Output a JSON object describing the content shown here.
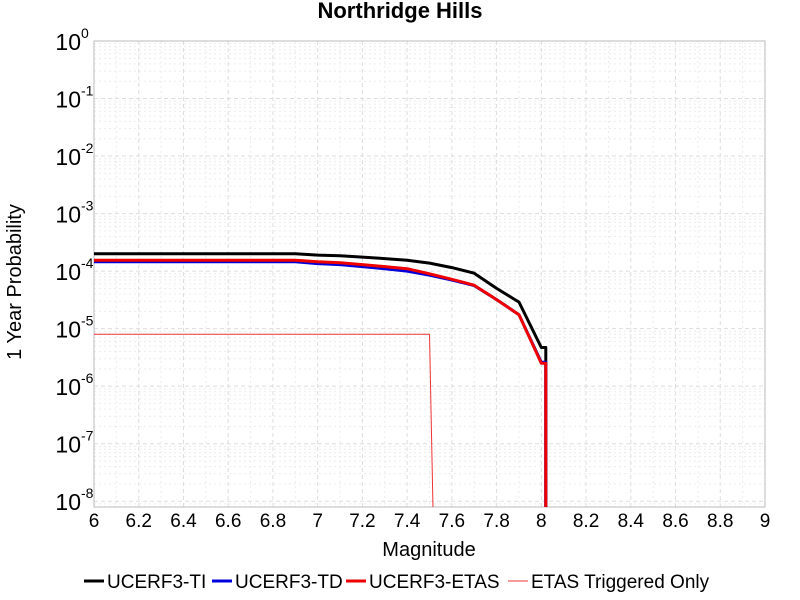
{
  "chart_data": {
    "type": "line",
    "title": "Northridge Hills",
    "xlabel": "Magnitude",
    "ylabel": "1 Year Probability",
    "xlim": [
      6,
      9
    ],
    "ylim_log10": [
      -8.1,
      0
    ],
    "yscale": "log",
    "grid": true,
    "legend_placement": "bottom",
    "x_ticks": [
      "6",
      "6.2",
      "6.4",
      "6.6",
      "6.8",
      "7",
      "7.2",
      "7.4",
      "7.6",
      "7.8",
      "8",
      "8.2",
      "8.4",
      "8.6",
      "8.8",
      "9"
    ],
    "y_ticks": [
      {
        "base": "10",
        "exp": "0"
      },
      {
        "base": "10",
        "exp": "-1"
      },
      {
        "base": "10",
        "exp": "-2"
      },
      {
        "base": "10",
        "exp": "-3"
      },
      {
        "base": "10",
        "exp": "-4"
      },
      {
        "base": "10",
        "exp": "-5"
      },
      {
        "base": "10",
        "exp": "-6"
      },
      {
        "base": "10",
        "exp": "-7"
      },
      {
        "base": "10",
        "exp": "-8"
      }
    ],
    "series": [
      {
        "name": "UCERF3-TI",
        "color": "#000000",
        "x": [
          6.0,
          6.9,
          7.0,
          7.1,
          7.2,
          7.3,
          7.4,
          7.5,
          7.6,
          7.7,
          7.8,
          7.9,
          8.0,
          8.02,
          8.02
        ],
        "y": [
          0.0002,
          0.0002,
          0.00019,
          0.000185,
          0.000175,
          0.000165,
          0.000155,
          0.000138,
          0.000115,
          9.2e-05,
          5e-05,
          2.9e-05,
          4.7e-06,
          4.7e-06,
          1e-09
        ]
      },
      {
        "name": "UCERF3-TD",
        "color": "#0000dd",
        "x": [
          6.0,
          6.9,
          7.0,
          7.1,
          7.2,
          7.3,
          7.4,
          7.5,
          7.6,
          7.7,
          7.8,
          7.9,
          8.0,
          8.02,
          8.02
        ],
        "y": [
          0.000145,
          0.000145,
          0.000135,
          0.00013,
          0.00012,
          0.00011,
          0.0001,
          8.5e-05,
          7e-05,
          5.6e-05,
          3.2e-05,
          1.75e-05,
          2.6e-06,
          2.6e-06,
          1e-09
        ]
      },
      {
        "name": "UCERF3-ETAS",
        "color": "#ee0000",
        "x": [
          6.0,
          6.9,
          7.0,
          7.1,
          7.2,
          7.3,
          7.4,
          7.5,
          7.6,
          7.7,
          7.8,
          7.9,
          8.0,
          8.02,
          8.02
        ],
        "y": [
          0.000155,
          0.000155,
          0.000145,
          0.00014,
          0.00013,
          0.00012,
          0.00011,
          9e-05,
          7.2e-05,
          5.7e-05,
          3.2e-05,
          1.75e-05,
          2.5e-06,
          2.5e-06,
          1e-09
        ]
      },
      {
        "name": "ETAS Triggered Only",
        "color": "#ee3333",
        "x": [
          6.0,
          7.5,
          7.52,
          7.52
        ],
        "y": [
          8e-06,
          8e-06,
          1e-09,
          1e-09
        ]
      }
    ]
  }
}
